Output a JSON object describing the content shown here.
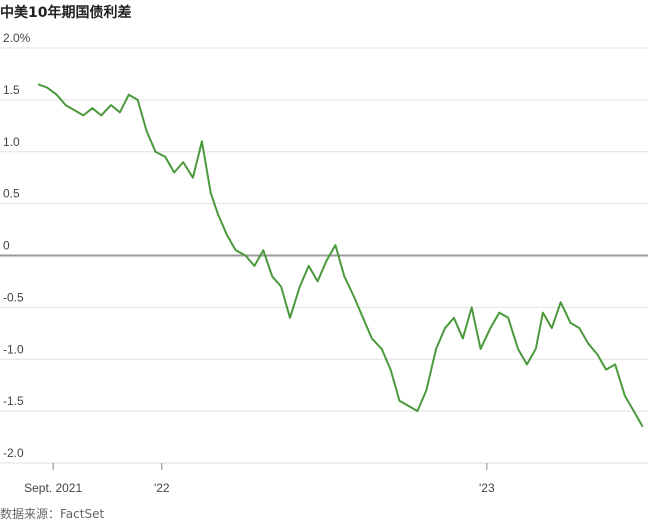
{
  "title": "中美10年期国债利差",
  "source": "数据来源：FactSet",
  "chart_data": {
    "type": "line",
    "title": "中美10年期国债利差",
    "ylim": [
      -2.0,
      2.0
    ],
    "y_ticks": [
      {
        "value": 2.0,
        "label": "2.0%"
      },
      {
        "value": 1.5,
        "label": "1.5"
      },
      {
        "value": 1.0,
        "label": "1.0"
      },
      {
        "value": 0.5,
        "label": "0.5"
      },
      {
        "value": 0.0,
        "label": "0"
      },
      {
        "value": -0.5,
        "label": "-0.5"
      },
      {
        "value": -1.0,
        "label": "-1.0"
      },
      {
        "value": -1.5,
        "label": "-1.5"
      },
      {
        "value": -2.0,
        "label": "-2.0"
      }
    ],
    "x_ticks": [
      {
        "value": "2021-09-01",
        "label": "Sept. 2021"
      },
      {
        "value": "2022-01-01",
        "label": "'22"
      },
      {
        "value": "2023-01-01",
        "label": "'23"
      }
    ],
    "xlim": [
      "2021-08-15",
      "2023-07-01"
    ],
    "grid": true,
    "zero_line": true,
    "line_color": "#4a9a3c",
    "series": [
      {
        "x": [
          "2021-08-15",
          "2021-08-25",
          "2021-09-05",
          "2021-09-15",
          "2021-09-25",
          "2021-10-05",
          "2021-10-15",
          "2021-10-25",
          "2021-11-05",
          "2021-11-15",
          "2021-11-25",
          "2021-12-05",
          "2021-12-15",
          "2021-12-25",
          "2022-01-05",
          "2022-01-15",
          "2022-01-25",
          "2022-02-05",
          "2022-02-15",
          "2022-02-25",
          "2022-03-05",
          "2022-03-15",
          "2022-03-25",
          "2022-04-05",
          "2022-04-15",
          "2022-04-25",
          "2022-05-05",
          "2022-05-15",
          "2022-05-25",
          "2022-06-05",
          "2022-06-15",
          "2022-06-25",
          "2022-07-05",
          "2022-07-15",
          "2022-07-25",
          "2022-08-05",
          "2022-08-15",
          "2022-08-25",
          "2022-09-05",
          "2022-09-15",
          "2022-09-25",
          "2022-10-05",
          "2022-10-15",
          "2022-10-25",
          "2022-11-05",
          "2022-11-15",
          "2022-11-25",
          "2022-12-05",
          "2022-12-15",
          "2022-12-25",
          "2023-01-05",
          "2023-01-15",
          "2023-01-25",
          "2023-02-05",
          "2023-02-15",
          "2023-02-25",
          "2023-03-05",
          "2023-03-15",
          "2023-03-25",
          "2023-04-05",
          "2023-04-15",
          "2023-04-25",
          "2023-05-05",
          "2023-05-15",
          "2023-05-25",
          "2023-06-05",
          "2023-06-15",
          "2023-06-25"
        ],
        "y": [
          1.65,
          1.62,
          1.55,
          1.45,
          1.4,
          1.35,
          1.42,
          1.35,
          1.45,
          1.38,
          1.55,
          1.5,
          1.2,
          1.0,
          0.95,
          0.8,
          0.9,
          0.75,
          1.1,
          0.6,
          0.4,
          0.2,
          0.05,
          0.0,
          -0.1,
          0.05,
          -0.2,
          -0.3,
          -0.6,
          -0.3,
          -0.1,
          -0.25,
          -0.05,
          0.1,
          -0.2,
          -0.4,
          -0.6,
          -0.8,
          -0.9,
          -1.1,
          -1.4,
          -1.45,
          -1.5,
          -1.3,
          -0.9,
          -0.7,
          -0.6,
          -0.8,
          -0.5,
          -0.9,
          -0.7,
          -0.55,
          -0.6,
          -0.9,
          -1.05,
          -0.9,
          -0.55,
          -0.7,
          -0.45,
          -0.65,
          -0.7,
          -0.85,
          -0.95,
          -1.1,
          -1.05,
          -1.35,
          -1.5,
          -1.65
        ]
      }
    ]
  }
}
